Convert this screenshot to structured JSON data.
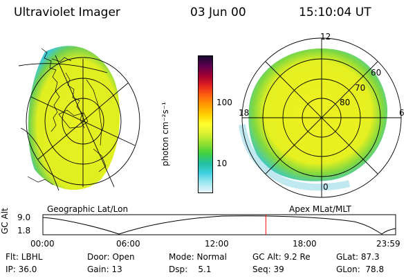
{
  "header": {
    "title": "Ultraviolet Imager",
    "date": "03 Jun 00",
    "time": "15:10:04 UT"
  },
  "geo_panel": {
    "caption": "Geographic Lat/Lon"
  },
  "apex_panel": {
    "caption": "Apex MLat/MLT",
    "mlt_labels": {
      "top": "12",
      "left": "18",
      "right": "6",
      "bottom": "0"
    },
    "lat_labels": [
      "60",
      "70",
      "80"
    ]
  },
  "colorbar": {
    "unit_label": "photon cm⁻²s⁻¹",
    "ticks": [
      "100",
      "10"
    ],
    "colors": [
      "#1a0a30",
      "#5a0050",
      "#a00030",
      "#e02020",
      "#ff6010",
      "#ff9a00",
      "#ffd000",
      "#ffff30",
      "#d8f030",
      "#90e030",
      "#40d040",
      "#20c0a0",
      "#40d0e0",
      "#a0e8f0",
      "#e8f4f8"
    ]
  },
  "timeline": {
    "axis_label": "GC Alt",
    "y_ticks": [
      "9.0",
      "1.8"
    ],
    "x_ticks": [
      "00:00",
      "06:00",
      "12:00",
      "18:00",
      "23:59"
    ],
    "marker_time_hours": 15.17,
    "marker_color": "#ff0000"
  },
  "info": {
    "row1": [
      "Flt: LBHL",
      "Door: Open",
      "Mode: Normal",
      "GC Alt: 9.2 Re",
      "GLat:  87.3"
    ],
    "row2": [
      "IP: 36.0",
      "Gain: 13",
      "Dsp:    5.1",
      "Seq: 39",
      "GLon:  78.8"
    ]
  },
  "colors": {
    "oval_yellow": "#f0f020",
    "oval_green": "#80d840",
    "oval_cyan": "#40d0b0"
  }
}
